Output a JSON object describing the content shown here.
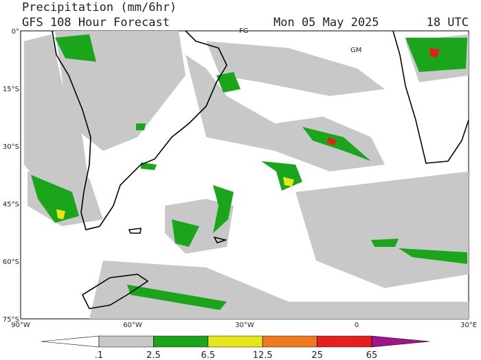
{
  "header": {
    "title": "Precipitation (mm/6hr)",
    "subtitle": "GFS 108 Hour Forecast",
    "date": "Mon 05 May 2025",
    "time": "18 UTC"
  },
  "map": {
    "lat_labels": [
      "0°",
      "15°S",
      "30°S",
      "45°S",
      "60°S",
      "75°S"
    ],
    "lon_labels": [
      "90°W",
      "60°W",
      "30°W",
      "0",
      "30°E"
    ],
    "place_labels": [
      "FG",
      "GM"
    ]
  },
  "colorbar": {
    "labels": [
      ".1",
      "2.5",
      "6.5",
      "12.5",
      "25",
      "65"
    ],
    "colors": [
      "#ffffff",
      "#c8c8c8",
      "#1aa51a",
      "#e6e61a",
      "#f0781e",
      "#e61e1e",
      "#a0148c"
    ]
  }
}
